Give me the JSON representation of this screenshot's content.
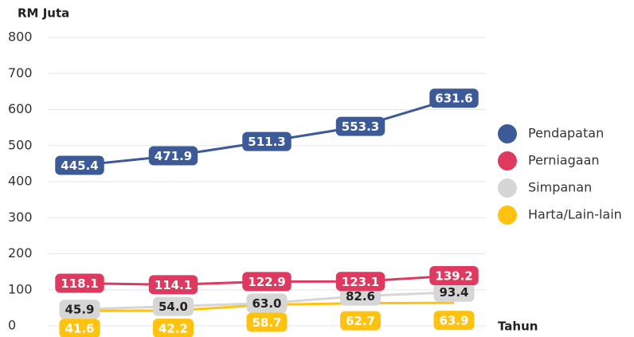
{
  "chart_data": {
    "type": "line",
    "y_axis_label": "RM Juta",
    "x_axis_label": "Tahun",
    "categories": [
      null,
      null,
      null,
      null,
      null
    ],
    "series": [
      {
        "name": "Pendapatan",
        "color": "#3d5a98",
        "label_text_color": "#ffffff",
        "values": [
          445.4,
          471.9,
          511.3,
          553.3,
          631.6
        ],
        "value_labels": [
          "445.4",
          "471.9",
          "511.3",
          "553.3",
          "631.6"
        ]
      },
      {
        "name": "Perniagaan",
        "color": "#de3a5f",
        "label_text_color": "#ffffff",
        "values": [
          118.1,
          114.1,
          122.9,
          123.1,
          139.2
        ],
        "value_labels": [
          "118.1",
          "114.1",
          "122.9",
          "123.1",
          "139.2"
        ]
      },
      {
        "name": "Simpanan",
        "color": "#d6d6d6",
        "label_text_color": "#222222",
        "values": [
          45.9,
          54.0,
          63.0,
          82.6,
          93.4
        ],
        "value_labels": [
          "45.9",
          "54.0",
          "63.0",
          "82.6",
          "93.4"
        ]
      },
      {
        "name": "Harta/Lain-lain",
        "color": "#ffc20e",
        "label_text_color": "#ffffff",
        "values": [
          41.6,
          42.2,
          58.7,
          62.7,
          63.9
        ],
        "value_labels": [
          "41.6",
          "42.2",
          "58.7",
          "62.7",
          "63.9"
        ]
      }
    ],
    "ylim": [
      0,
      800
    ],
    "yticks": [
      0,
      100,
      200,
      300,
      400,
      500,
      600,
      700,
      800
    ],
    "grid": true,
    "legend": "right"
  }
}
